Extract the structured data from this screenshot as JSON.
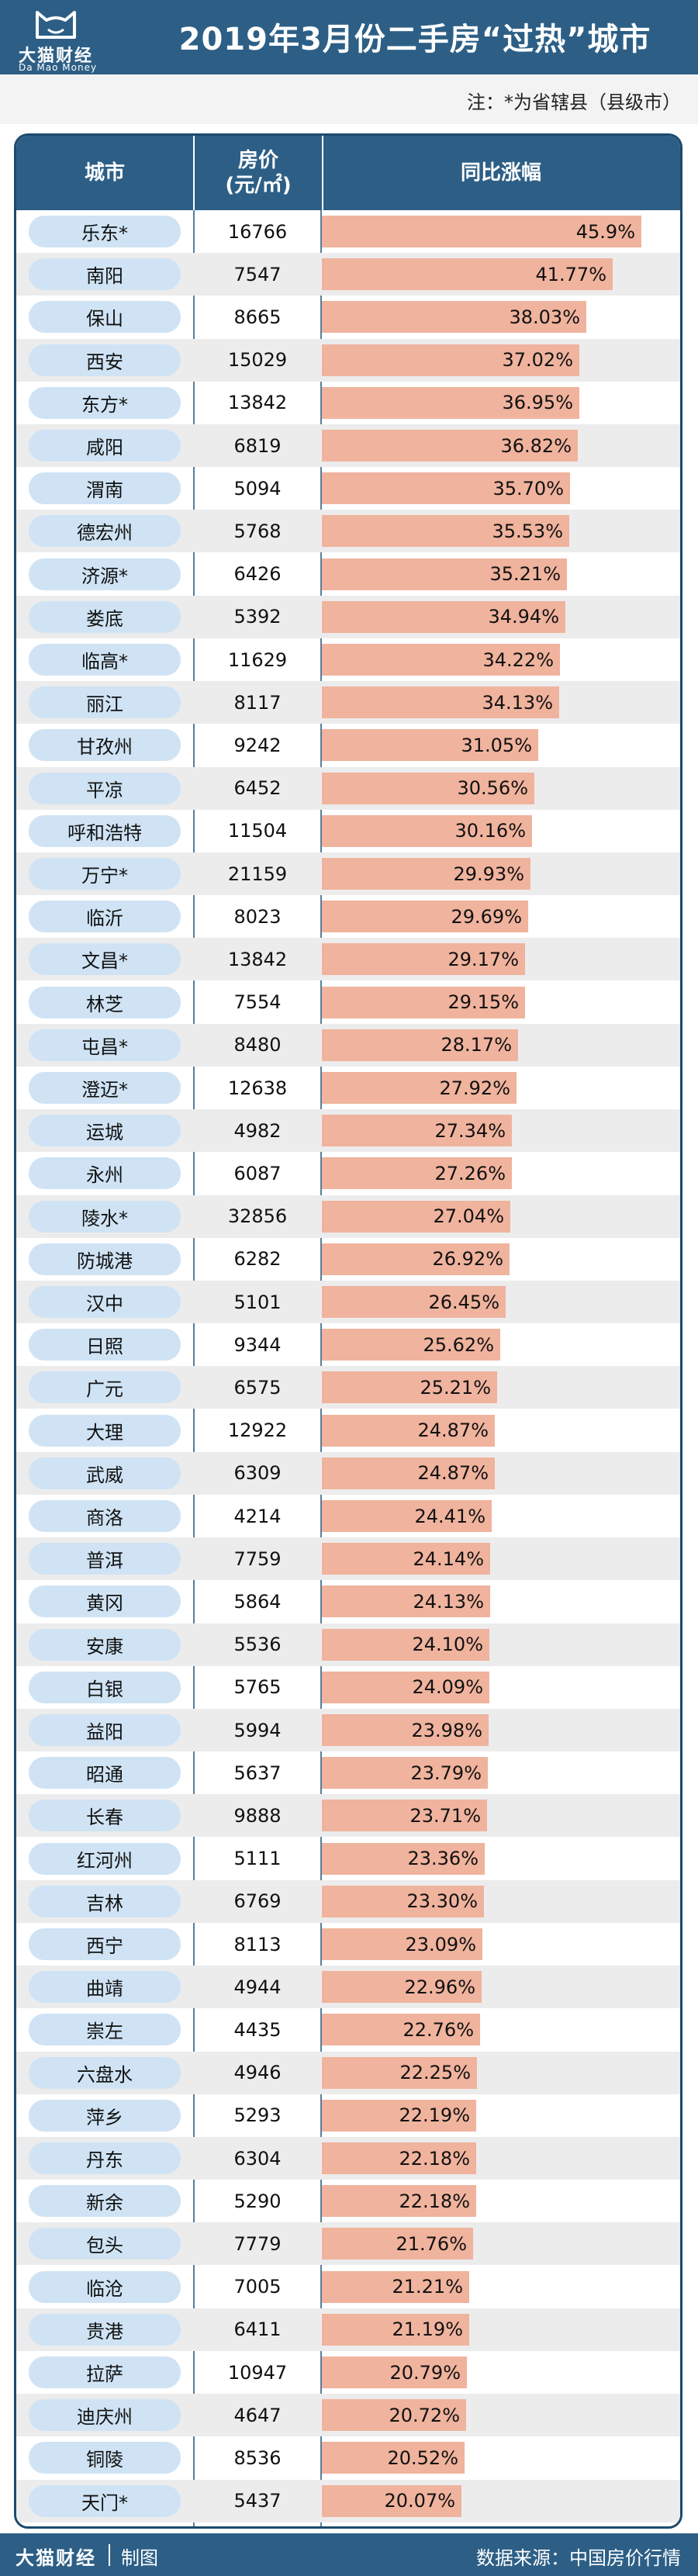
{
  "header": {
    "title": "2019年3月份二手房“过热”城市",
    "brand_cn": "大猫财经",
    "brand_en": "Da Mao Money",
    "note": "注：*为省辖县（县级市）"
  },
  "table": {
    "col_city": "城市",
    "col_price": "房价\n(元/㎡)",
    "col_growth": "同比涨幅"
  },
  "colors": {
    "header_bg": "#2d5f86",
    "bar": "#f0b39d",
    "city_pill": "#cfe3f4"
  },
  "chart_data": {
    "type": "table",
    "columns": [
      "城市",
      "房价(元/㎡)",
      "同比涨幅"
    ],
    "rows": [
      {
        "city": "乐东*",
        "price": "16766",
        "growth": "45.9%",
        "value": 45.9
      },
      {
        "city": "南阳",
        "price": "7547",
        "growth": "41.77%",
        "value": 41.77
      },
      {
        "city": "保山",
        "price": "8665",
        "growth": "38.03%",
        "value": 38.03
      },
      {
        "city": "西安",
        "price": "15029",
        "growth": "37.02%",
        "value": 37.02
      },
      {
        "city": "东方*",
        "price": "13842",
        "growth": "36.95%",
        "value": 36.95
      },
      {
        "city": "咸阳",
        "price": "6819",
        "growth": "36.82%",
        "value": 36.82
      },
      {
        "city": "渭南",
        "price": "5094",
        "growth": "35.70%",
        "value": 35.7
      },
      {
        "city": "德宏州",
        "price": "5768",
        "growth": "35.53%",
        "value": 35.53
      },
      {
        "city": "济源*",
        "price": "6426",
        "growth": "35.21%",
        "value": 35.21
      },
      {
        "city": "娄底",
        "price": "5392",
        "growth": "34.94%",
        "value": 34.94
      },
      {
        "city": "临高*",
        "price": "11629",
        "growth": "34.22%",
        "value": 34.22
      },
      {
        "city": "丽江",
        "price": "8117",
        "growth": "34.13%",
        "value": 34.13
      },
      {
        "city": "甘孜州",
        "price": "9242",
        "growth": "31.05%",
        "value": 31.05
      },
      {
        "city": "平凉",
        "price": "6452",
        "growth": "30.56%",
        "value": 30.56
      },
      {
        "city": "呼和浩特",
        "price": "11504",
        "growth": "30.16%",
        "value": 30.16
      },
      {
        "city": "万宁*",
        "price": "21159",
        "growth": "29.93%",
        "value": 29.93
      },
      {
        "city": "临沂",
        "price": "8023",
        "growth": "29.69%",
        "value": 29.69
      },
      {
        "city": "文昌*",
        "price": "13842",
        "growth": "29.17%",
        "value": 29.17
      },
      {
        "city": "林芝",
        "price": "7554",
        "growth": "29.15%",
        "value": 29.15
      },
      {
        "city": "屯昌*",
        "price": "8480",
        "growth": "28.17%",
        "value": 28.17
      },
      {
        "city": "澄迈*",
        "price": "12638",
        "growth": "27.92%",
        "value": 27.92
      },
      {
        "city": "运城",
        "price": "4982",
        "growth": "27.34%",
        "value": 27.34
      },
      {
        "city": "永州",
        "price": "6087",
        "growth": "27.26%",
        "value": 27.26
      },
      {
        "city": "陵水*",
        "price": "32856",
        "growth": "27.04%",
        "value": 27.04
      },
      {
        "city": "防城港",
        "price": "6282",
        "growth": "26.92%",
        "value": 26.92
      },
      {
        "city": "汉中",
        "price": "5101",
        "growth": "26.45%",
        "value": 26.45
      },
      {
        "city": "日照",
        "price": "9344",
        "growth": "25.62%",
        "value": 25.62
      },
      {
        "city": "广元",
        "price": "6575",
        "growth": "25.21%",
        "value": 25.21
      },
      {
        "city": "大理",
        "price": "12922",
        "growth": "24.87%",
        "value": 24.87
      },
      {
        "city": "武威",
        "price": "6309",
        "growth": "24.87%",
        "value": 24.87
      },
      {
        "city": "商洛",
        "price": "4214",
        "growth": "24.41%",
        "value": 24.41
      },
      {
        "city": "普洱",
        "price": "7759",
        "growth": "24.14%",
        "value": 24.14
      },
      {
        "city": "黄冈",
        "price": "5864",
        "growth": "24.13%",
        "value": 24.13
      },
      {
        "city": "安康",
        "price": "5536",
        "growth": "24.10%",
        "value": 24.1
      },
      {
        "city": "白银",
        "price": "5765",
        "growth": "24.09%",
        "value": 24.09
      },
      {
        "city": "益阳",
        "price": "5994",
        "growth": "23.98%",
        "value": 23.98
      },
      {
        "city": "昭通",
        "price": "5637",
        "growth": "23.79%",
        "value": 23.79
      },
      {
        "city": "长春",
        "price": "9888",
        "growth": "23.71%",
        "value": 23.71
      },
      {
        "city": "红河州",
        "price": "5111",
        "growth": "23.36%",
        "value": 23.36
      },
      {
        "city": "吉林",
        "price": "6769",
        "growth": "23.30%",
        "value": 23.3
      },
      {
        "city": "西宁",
        "price": "8113",
        "growth": "23.09%",
        "value": 23.09
      },
      {
        "city": "曲靖",
        "price": "4944",
        "growth": "22.96%",
        "value": 22.96
      },
      {
        "city": "崇左",
        "price": "4435",
        "growth": "22.76%",
        "value": 22.76
      },
      {
        "city": "六盘水",
        "price": "4946",
        "growth": "22.25%",
        "value": 22.25
      },
      {
        "city": "萍乡",
        "price": "5293",
        "growth": "22.19%",
        "value": 22.19
      },
      {
        "city": "丹东",
        "price": "6304",
        "growth": "22.18%",
        "value": 22.18
      },
      {
        "city": "新余",
        "price": "5290",
        "growth": "22.18%",
        "value": 22.18
      },
      {
        "city": "包头",
        "price": "7779",
        "growth": "21.76%",
        "value": 21.76
      },
      {
        "city": "临沧",
        "price": "7005",
        "growth": "21.21%",
        "value": 21.21
      },
      {
        "city": "贵港",
        "price": "6411",
        "growth": "21.19%",
        "value": 21.19
      },
      {
        "city": "拉萨",
        "price": "10947",
        "growth": "20.79%",
        "value": 20.79
      },
      {
        "city": "迪庆州",
        "price": "4647",
        "growth": "20.72%",
        "value": 20.72
      },
      {
        "city": "铜陵",
        "price": "8536",
        "growth": "20.52%",
        "value": 20.52
      },
      {
        "city": "天门*",
        "price": "5437",
        "growth": "20.07%",
        "value": 20.07
      }
    ]
  },
  "footer": {
    "brand": "大猫财经",
    "credit": "制图",
    "source": "数据来源：中国房价行情"
  }
}
